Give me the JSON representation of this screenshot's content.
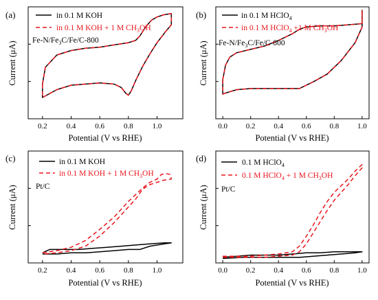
{
  "figure": {
    "colors": {
      "black": "#000000",
      "red": "#e8141b"
    },
    "sub_labels": {
      "sub_a": "(a)",
      "sub_b": "(b)",
      "sub_c": "(c)",
      "sub_d": "(d)"
    }
  },
  "panels": {
    "a": {
      "sample_label": "Fe-N/Fe3C/Fe/C-800",
      "legend": {
        "l1": "in 0.1 M KOH",
        "l2": "in 0.1 M KOH + 1 M CH3OH"
      }
    },
    "b": {
      "sample_label": "Fe-N/Fe3C/Fe/C-800",
      "legend": {
        "l1": "in 0.1 M HClO4",
        "l2": "in 0.1 M HClO4 +1 M CH3OH"
      }
    },
    "c": {
      "sample_label": "Pt/C",
      "legend": {
        "l1": "in 0.1 M KOH",
        "l2": "in 0.1 M KOH + 1 M CH3OH"
      }
    },
    "d": {
      "sample_label": "Pt/C",
      "legend": {
        "l1": "0.1 M HClO4",
        "l2": "0.1 M HClO4 + 1 M CH3OH"
      }
    }
  },
  "chart_data": [
    {
      "id": "a",
      "type": "line",
      "xlabel": "Potential (V vs RHE)",
      "ylabel": "Current (μA)",
      "xlim": [
        0.1,
        1.18
      ],
      "ylim": [
        0,
        100
      ],
      "xticks": [
        0.2,
        0.4,
        0.6,
        0.8,
        1.0
      ],
      "tick_labels": [
        "0.2",
        "0.4",
        "0.6",
        "0.8",
        "1.0"
      ],
      "series": [
        {
          "name": "in 0.1 M KOH",
          "style": "solid",
          "color": "#000000",
          "points": [
            [
              0.2,
              31
            ],
            [
              0.22,
              46
            ],
            [
              0.3,
              57
            ],
            [
              0.4,
              61
            ],
            [
              0.5,
              63
            ],
            [
              0.6,
              64
            ],
            [
              0.7,
              66
            ],
            [
              0.8,
              68
            ],
            [
              0.85,
              70
            ],
            [
              0.88,
              74
            ],
            [
              0.92,
              82
            ],
            [
              0.96,
              88
            ],
            [
              1.0,
              91
            ],
            [
              1.05,
              93
            ],
            [
              1.1,
              94
            ],
            [
              1.1,
              84
            ],
            [
              1.06,
              78
            ],
            [
              1.0,
              68
            ],
            [
              0.95,
              58
            ],
            [
              0.9,
              47
            ],
            [
              0.85,
              34
            ],
            [
              0.82,
              25
            ],
            [
              0.8,
              21
            ],
            [
              0.78,
              23
            ],
            [
              0.75,
              28
            ],
            [
              0.7,
              31
            ],
            [
              0.6,
              32
            ],
            [
              0.5,
              31
            ],
            [
              0.4,
              30
            ],
            [
              0.3,
              26
            ],
            [
              0.2,
              19
            ],
            [
              0.2,
              31
            ]
          ]
        },
        {
          "name": "in 0.1 M KOH + 1 M CH3OH",
          "style": "dashed",
          "color": "#e8141b",
          "points": [
            [
              0.2,
              31
            ],
            [
              0.22,
              46
            ],
            [
              0.3,
              57
            ],
            [
              0.4,
              61
            ],
            [
              0.5,
              63
            ],
            [
              0.6,
              64
            ],
            [
              0.7,
              66
            ],
            [
              0.8,
              68
            ],
            [
              0.85,
              70
            ],
            [
              0.88,
              74
            ],
            [
              0.92,
              82
            ],
            [
              0.96,
              88
            ],
            [
              1.0,
              91
            ],
            [
              1.05,
              93
            ],
            [
              1.1,
              94
            ],
            [
              1.1,
              84
            ],
            [
              1.06,
              78
            ],
            [
              1.0,
              68
            ],
            [
              0.95,
              58
            ],
            [
              0.9,
              47
            ],
            [
              0.85,
              34
            ],
            [
              0.82,
              25
            ],
            [
              0.8,
              21
            ],
            [
              0.78,
              23
            ],
            [
              0.75,
              28
            ],
            [
              0.7,
              31
            ],
            [
              0.6,
              32
            ],
            [
              0.5,
              31
            ],
            [
              0.4,
              30
            ],
            [
              0.3,
              26
            ],
            [
              0.2,
              19
            ],
            [
              0.2,
              31
            ]
          ]
        }
      ]
    },
    {
      "id": "b",
      "type": "line",
      "xlabel": "Potential (V vs RHE)",
      "ylabel": "Current (μA)",
      "xlim": [
        -0.05,
        1.05
      ],
      "ylim": [
        0,
        100
      ],
      "xticks": [
        0.0,
        0.2,
        0.4,
        0.6,
        0.8,
        1.0
      ],
      "tick_labels": [
        "0.0",
        "0.2",
        "0.4",
        "0.6",
        "0.8",
        "1.0"
      ],
      "series": [
        {
          "name": "in 0.1 M HClO4",
          "style": "solid",
          "color": "#000000",
          "points": [
            [
              0,
              35
            ],
            [
              0.02,
              48
            ],
            [
              0.05,
              55
            ],
            [
              0.1,
              59
            ],
            [
              0.2,
              62
            ],
            [
              0.3,
              65
            ],
            [
              0.4,
              70
            ],
            [
              0.5,
              76
            ],
            [
              0.55,
              80
            ],
            [
              0.6,
              82
            ],
            [
              0.7,
              83
            ],
            [
              0.8,
              83
            ],
            [
              0.9,
              84
            ],
            [
              1.0,
              85
            ],
            [
              1.0,
              97
            ],
            [
              1.0,
              82
            ],
            [
              0.95,
              68
            ],
            [
              0.85,
              52
            ],
            [
              0.75,
              40
            ],
            [
              0.65,
              33
            ],
            [
              0.6,
              30
            ],
            [
              0.55,
              27
            ],
            [
              0.5,
              27
            ],
            [
              0.4,
              27
            ],
            [
              0.3,
              27
            ],
            [
              0.2,
              27
            ],
            [
              0.1,
              26
            ],
            [
              0.02,
              23
            ],
            [
              0,
              22
            ],
            [
              0,
              35
            ]
          ]
        },
        {
          "name": "in 0.1 M HClO4 +1 M CH3OH",
          "style": "dashed",
          "color": "#e8141b",
          "points": [
            [
              0,
              35
            ],
            [
              0.02,
              48
            ],
            [
              0.05,
              55
            ],
            [
              0.1,
              59
            ],
            [
              0.2,
              62
            ],
            [
              0.3,
              65
            ],
            [
              0.4,
              70
            ],
            [
              0.5,
              76
            ],
            [
              0.55,
              80
            ],
            [
              0.6,
              82
            ],
            [
              0.7,
              83
            ],
            [
              0.8,
              83
            ],
            [
              0.9,
              84
            ],
            [
              1.0,
              85
            ],
            [
              1.0,
              97
            ],
            [
              1.0,
              82
            ],
            [
              0.95,
              68
            ],
            [
              0.85,
              52
            ],
            [
              0.75,
              40
            ],
            [
              0.65,
              33
            ],
            [
              0.6,
              30
            ],
            [
              0.55,
              27
            ],
            [
              0.5,
              27
            ],
            [
              0.4,
              27
            ],
            [
              0.3,
              27
            ],
            [
              0.2,
              27
            ],
            [
              0.1,
              26
            ],
            [
              0.02,
              23
            ],
            [
              0,
              22
            ],
            [
              0,
              35
            ]
          ]
        }
      ]
    },
    {
      "id": "c",
      "type": "line",
      "xlabel": "Potential (V vs RHE)",
      "ylabel": "Current (μA)",
      "xlim": [
        0.1,
        1.18
      ],
      "ylim": [
        0,
        100
      ],
      "xticks": [
        0.2,
        0.4,
        0.6,
        0.8,
        1.0
      ],
      "tick_labels": [
        "0.2",
        "0.4",
        "0.6",
        "0.8",
        "1.0"
      ],
      "series": [
        {
          "name": "in 0.1 M KOH",
          "style": "solid",
          "color": "#000000",
          "points": [
            [
              0.2,
              9
            ],
            [
              0.25,
              12
            ],
            [
              0.35,
              12
            ],
            [
              0.45,
              12
            ],
            [
              0.55,
              13
            ],
            [
              0.65,
              14
            ],
            [
              0.75,
              15
            ],
            [
              0.85,
              16
            ],
            [
              0.95,
              17
            ],
            [
              1.05,
              18
            ],
            [
              1.1,
              18
            ],
            [
              1.05,
              17
            ],
            [
              0.95,
              15
            ],
            [
              0.88,
              12
            ],
            [
              0.8,
              12
            ],
            [
              0.7,
              11
            ],
            [
              0.6,
              10
            ],
            [
              0.5,
              9
            ],
            [
              0.4,
              9
            ],
            [
              0.3,
              8
            ],
            [
              0.2,
              8
            ]
          ]
        },
        {
          "name": "in 0.1 M KOH + 1 M CH3OH",
          "style": "dashed",
          "color": "#e8141b",
          "points": [
            [
              0.2,
              9
            ],
            [
              0.3,
              11
            ],
            [
              0.4,
              14
            ],
            [
              0.5,
              20
            ],
            [
              0.6,
              30
            ],
            [
              0.7,
              41
            ],
            [
              0.8,
              55
            ],
            [
              0.9,
              67
            ],
            [
              0.95,
              72
            ],
            [
              1.0,
              75
            ],
            [
              1.03,
              79
            ],
            [
              1.06,
              80
            ],
            [
              1.09,
              79
            ],
            [
              1.1,
              75
            ],
            [
              1.05,
              74
            ],
            [
              1.0,
              72
            ],
            [
              0.95,
              70
            ],
            [
              0.9,
              66
            ],
            [
              0.85,
              57
            ],
            [
              0.8,
              50
            ],
            [
              0.7,
              36
            ],
            [
              0.6,
              24
            ],
            [
              0.5,
              15
            ],
            [
              0.4,
              11
            ],
            [
              0.3,
              9
            ],
            [
              0.2,
              8
            ]
          ]
        }
      ]
    },
    {
      "id": "d",
      "type": "line",
      "xlabel": "Potential (V vs RHE)",
      "ylabel": "Current (μA)",
      "xlim": [
        -0.05,
        1.05
      ],
      "ylim": [
        0,
        100
      ],
      "xticks": [
        0.0,
        0.2,
        0.4,
        0.6,
        0.8,
        1.0
      ],
      "tick_labels": [
        "0.0",
        "0.2",
        "0.4",
        "0.6",
        "0.8",
        "1.0"
      ],
      "series": [
        {
          "name": "0.1 M HClO4",
          "style": "solid",
          "color": "#000000",
          "points": [
            [
              0,
              5
            ],
            [
              0.1,
              6
            ],
            [
              0.2,
              7
            ],
            [
              0.3,
              7
            ],
            [
              0.4,
              7
            ],
            [
              0.5,
              8
            ],
            [
              0.6,
              9
            ],
            [
              0.7,
              9
            ],
            [
              0.8,
              10
            ],
            [
              0.9,
              10
            ],
            [
              1.0,
              10
            ],
            [
              0.95,
              9
            ],
            [
              0.85,
              8
            ],
            [
              0.75,
              7
            ],
            [
              0.65,
              6
            ],
            [
              0.55,
              5
            ],
            [
              0.45,
              5
            ],
            [
              0.35,
              5
            ],
            [
              0.25,
              5
            ],
            [
              0.15,
              5
            ],
            [
              0,
              4
            ]
          ]
        },
        {
          "name": "0.1 M HClO4 + 1 M CH3OH",
          "style": "dashed",
          "color": "#e8141b",
          "points": [
            [
              0,
              6
            ],
            [
              0.1,
              6
            ],
            [
              0.2,
              6
            ],
            [
              0.3,
              7
            ],
            [
              0.4,
              8
            ],
            [
              0.5,
              10
            ],
            [
              0.55,
              15
            ],
            [
              0.6,
              24
            ],
            [
              0.65,
              34
            ],
            [
              0.7,
              45
            ],
            [
              0.75,
              55
            ],
            [
              0.8,
              63
            ],
            [
              0.85,
              69
            ],
            [
              0.9,
              75
            ],
            [
              0.95,
              82
            ],
            [
              1.0,
              88
            ],
            [
              1.0,
              85
            ],
            [
              0.95,
              78
            ],
            [
              0.9,
              70
            ],
            [
              0.85,
              63
            ],
            [
              0.8,
              56
            ],
            [
              0.75,
              47
            ],
            [
              0.7,
              37
            ],
            [
              0.65,
              27
            ],
            [
              0.6,
              17
            ],
            [
              0.55,
              10
            ],
            [
              0.5,
              7
            ],
            [
              0.4,
              6
            ],
            [
              0.3,
              5
            ],
            [
              0.2,
              5
            ],
            [
              0,
              5
            ]
          ]
        }
      ]
    }
  ]
}
